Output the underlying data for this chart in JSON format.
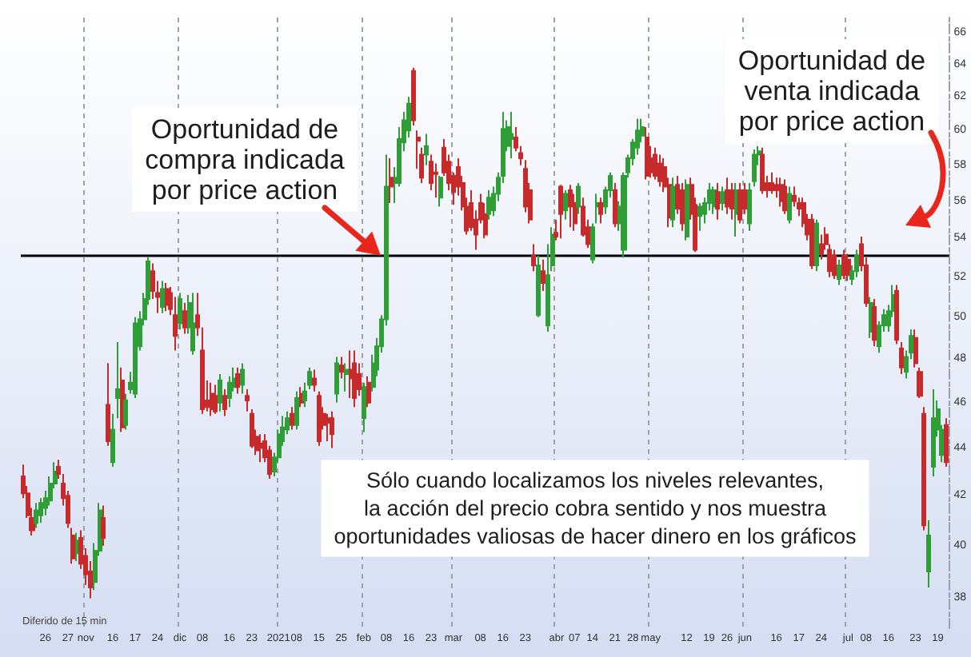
{
  "chart_data": {
    "type": "candlestick",
    "categories": [
      null,
      null,
      null,
      null,
      null,
      "26",
      null,
      null,
      null,
      null,
      "27",
      null,
      null,
      null,
      "nov",
      null,
      null,
      null,
      null,
      null,
      "16",
      null,
      null,
      null,
      null,
      "17",
      null,
      null,
      null,
      null,
      "24",
      null,
      null,
      null,
      null,
      "dic",
      null,
      null,
      null,
      null,
      "08",
      null,
      null,
      null,
      null,
      null,
      "16",
      null,
      null,
      null,
      null,
      "23",
      null,
      null,
      null,
      null,
      null,
      "2021",
      null,
      null,
      null,
      "08",
      null,
      null,
      null,
      null,
      "15",
      null,
      null,
      null,
      null,
      "25",
      null,
      null,
      null,
      null,
      "feb",
      null,
      null,
      null,
      null,
      "08",
      null,
      null,
      null,
      null,
      "16",
      null,
      null,
      null,
      null,
      "23",
      null,
      null,
      null,
      null,
      "mar",
      null,
      null,
      null,
      null,
      null,
      "08",
      null,
      null,
      null,
      null,
      "16",
      null,
      null,
      null,
      null,
      "23",
      null,
      null,
      null,
      null,
      null,
      null,
      "abr",
      null,
      null,
      null,
      "07",
      null,
      null,
      null,
      "14",
      null,
      null,
      null,
      null,
      "21",
      null,
      null,
      null,
      "28",
      null,
      null,
      null,
      "may",
      null,
      null,
      null,
      null,
      null,
      null,
      null,
      "12",
      null,
      null,
      null,
      null,
      "19",
      null,
      null,
      null,
      "26",
      null,
      null,
      null,
      "jun",
      null,
      null,
      null,
      null,
      null,
      null,
      "16",
      null,
      null,
      null,
      null,
      "17",
      null,
      null,
      null,
      null,
      "24",
      null,
      null,
      null,
      null,
      null,
      "jul",
      null,
      null,
      null,
      "08",
      null,
      null,
      null,
      null,
      "16",
      null,
      null,
      null,
      null,
      null,
      "23",
      null,
      null,
      null,
      null,
      "19",
      null,
      null
    ],
    "ohlc": [
      [
        42.8,
        43.3,
        41.9,
        42.1
      ],
      [
        42.1,
        42.4,
        41.1,
        41.2
      ],
      [
        41.1,
        41.5,
        40.4,
        40.6
      ],
      [
        40.9,
        41.7,
        40.7,
        41.4
      ],
      [
        41.2,
        41.9,
        40.9,
        41.7
      ],
      [
        41.5,
        42.2,
        41.2,
        41.9
      ],
      [
        41.8,
        42.8,
        41.6,
        42.5
      ],
      [
        42.5,
        43.4,
        42.3,
        43.0
      ],
      [
        43.2,
        43.5,
        42.7,
        42.9
      ],
      [
        42.5,
        42.9,
        41.6,
        41.9
      ],
      [
        42.0,
        42.2,
        40.7,
        40.9
      ],
      [
        40.4,
        40.7,
        39.3,
        39.5
      ],
      [
        39.7,
        40.5,
        39.4,
        40.2
      ],
      [
        40.3,
        40.6,
        39.1,
        39.3
      ],
      [
        39.6,
        39.9,
        38.5,
        38.9
      ],
      [
        39.0,
        39.4,
        38.0,
        38.4
      ],
      [
        38.6,
        40.1,
        38.3,
        39.8
      ],
      [
        39.8,
        41.7,
        39.6,
        41.4
      ],
      [
        41.1,
        41.6,
        40.0,
        40.3
      ],
      [
        45.9,
        47.8,
        44.1,
        44.3
      ],
      [
        43.4,
        45.5,
        43.2,
        44.8
      ],
      [
        46.2,
        48.8,
        45.3,
        46.6
      ],
      [
        47.0,
        47.6,
        44.7,
        44.9
      ],
      [
        45.0,
        46.4,
        44.8,
        46.1
      ],
      [
        46.6,
        47.4,
        46.4,
        46.9
      ],
      [
        46.4,
        50.0,
        46.2,
        49.7
      ],
      [
        48.6,
        50.3,
        48.4,
        49.9
      ],
      [
        49.9,
        51.2,
        49.6,
        50.9
      ],
      [
        50.9,
        53.0,
        50.6,
        52.8
      ],
      [
        52.3,
        52.7,
        50.9,
        51.3
      ],
      [
        51.2,
        51.8,
        50.2,
        51.0
      ],
      [
        50.5,
        51.8,
        50.2,
        51.4
      ],
      [
        51.4,
        51.7,
        50.3,
        50.6
      ],
      [
        51.2,
        51.5,
        50.1,
        50.4
      ],
      [
        50.1,
        51.0,
        48.4,
        49.1
      ],
      [
        49.7,
        51.2,
        49.4,
        50.9
      ],
      [
        50.3,
        50.7,
        49.2,
        49.5
      ],
      [
        49.5,
        51.1,
        49.2,
        50.7
      ],
      [
        48.4,
        51.2,
        48.2,
        49.7
      ],
      [
        50.1,
        51.2,
        49.1,
        49.5
      ],
      [
        48.4,
        49.5,
        45.5,
        45.7
      ],
      [
        46.1,
        47.0,
        45.6,
        45.8
      ],
      [
        46.4,
        46.9,
        45.4,
        45.7
      ],
      [
        46.3,
        46.8,
        45.5,
        45.6
      ],
      [
        46.0,
        47.3,
        45.6,
        47.0
      ],
      [
        46.3,
        46.6,
        45.4,
        45.7
      ],
      [
        46.2,
        47.2,
        45.8,
        46.9
      ],
      [
        46.7,
        47.6,
        46.5,
        47.1
      ],
      [
        47.3,
        47.6,
        46.4,
        46.7
      ],
      [
        46.8,
        47.8,
        46.4,
        47.5
      ],
      [
        46.3,
        46.6,
        45.6,
        46.1
      ],
      [
        45.5,
        45.7,
        44.0,
        44.1
      ],
      [
        44.5,
        44.8,
        43.7,
        43.9
      ],
      [
        44.2,
        44.6,
        43.4,
        44.0
      ],
      [
        44.3,
        44.6,
        43.4,
        43.6
      ],
      [
        43.9,
        44.1,
        42.7,
        42.9
      ],
      [
        43.0,
        43.8,
        42.8,
        43.6
      ],
      [
        43.6,
        44.8,
        43.4,
        44.6
      ],
      [
        44.3,
        45.4,
        44.1,
        44.9
      ],
      [
        44.8,
        45.6,
        44.6,
        45.3
      ],
      [
        45.5,
        45.8,
        44.8,
        45.0
      ],
      [
        45.0,
        46.5,
        44.8,
        46.2
      ],
      [
        46.4,
        46.7,
        45.8,
        46.0
      ],
      [
        46.1,
        46.9,
        45.8,
        46.5
      ],
      [
        46.8,
        47.6,
        46.6,
        47.4
      ],
      [
        47.1,
        47.5,
        46.5,
        46.8
      ],
      [
        46.3,
        46.5,
        44.1,
        44.3
      ],
      [
        45.5,
        45.8,
        44.8,
        45.0
      ],
      [
        45.3,
        45.5,
        44.3,
        45.1
      ],
      [
        45.3,
        45.6,
        44.0,
        44.6
      ],
      [
        46.4,
        48.1,
        46.0,
        47.8
      ],
      [
        47.7,
        48.1,
        47.1,
        47.4
      ],
      [
        47.3,
        47.8,
        46.5,
        47.5
      ],
      [
        47.5,
        48.4,
        46.2,
        47.1
      ],
      [
        47.8,
        48.4,
        45.8,
        46.2
      ],
      [
        47.3,
        47.8,
        46.3,
        46.6
      ],
      [
        45.3,
        46.9,
        44.7,
        46.7
      ],
      [
        46.9,
        47.2,
        45.8,
        46.0
      ],
      [
        46.7,
        48.2,
        46.5,
        47.8
      ],
      [
        47.5,
        49.0,
        47.2,
        48.6
      ],
      [
        48.6,
        50.1,
        48.3,
        49.9
      ],
      [
        49.9,
        58.6,
        49.6,
        56.8
      ],
      [
        57.3,
        58.4,
        55.9,
        56.8
      ],
      [
        57.0,
        57.9,
        55.9,
        57.3
      ],
      [
        57.0,
        60.2,
        56.8,
        59.5
      ],
      [
        59.3,
        61.1,
        58.8,
        60.6
      ],
      [
        60.0,
        62.0,
        59.6,
        61.6
      ],
      [
        63.6,
        63.8,
        60.3,
        60.6
      ],
      [
        59.6,
        60.0,
        57.8,
        59.4
      ],
      [
        58.6,
        59.0,
        57.0,
        57.3
      ],
      [
        58.6,
        59.8,
        58.0,
        59.1
      ],
      [
        58.2,
        58.6,
        56.6,
        57.0
      ],
      [
        57.6,
        58.1,
        56.2,
        57.5
      ],
      [
        56.2,
        57.4,
        55.7,
        57.3
      ],
      [
        59.0,
        59.5,
        57.4,
        57.6
      ],
      [
        58.2,
        58.6,
        56.6,
        57.0
      ],
      [
        57.4,
        57.6,
        55.8,
        56.5
      ],
      [
        57.9,
        58.4,
        56.3,
        56.8
      ],
      [
        57.0,
        57.4,
        55.5,
        55.7
      ],
      [
        55.7,
        56.2,
        54.2,
        54.4
      ],
      [
        55.9,
        56.6,
        54.4,
        54.6
      ],
      [
        55.0,
        55.5,
        53.4,
        54.2
      ],
      [
        55.9,
        56.4,
        54.8,
        55.0
      ],
      [
        55.3,
        55.9,
        54.0,
        54.2
      ],
      [
        55.3,
        56.6,
        55.0,
        56.2
      ],
      [
        55.5,
        56.8,
        55.2,
        56.4
      ],
      [
        56.4,
        57.6,
        56.0,
        57.3
      ],
      [
        57.4,
        61.1,
        57.0,
        60.1
      ],
      [
        59.1,
        60.6,
        58.8,
        60.2
      ],
      [
        59.5,
        61.1,
        58.4,
        59.8
      ],
      [
        59.6,
        60.2,
        58.8,
        59.0
      ],
      [
        58.7,
        59.1,
        58.0,
        58.4
      ],
      [
        57.8,
        58.3,
        55.4,
        55.7
      ],
      [
        56.6,
        57.0,
        54.8,
        55.0
      ],
      [
        53.1,
        53.7,
        52.3,
        52.6
      ],
      [
        50.1,
        53.1,
        50.0,
        52.6
      ],
      [
        52.3,
        52.9,
        51.3,
        51.7
      ],
      [
        49.6,
        53.7,
        49.3,
        52.1
      ],
      [
        52.6,
        54.6,
        52.3,
        54.2
      ],
      [
        54.3,
        55.0,
        53.9,
        54.1
      ],
      [
        56.8,
        56.9,
        54.0,
        55.3
      ],
      [
        55.5,
        56.6,
        55.0,
        56.4
      ],
      [
        56.6,
        56.9,
        54.6,
        55.7
      ],
      [
        55.9,
        56.4,
        54.4,
        54.8
      ],
      [
        55.7,
        57.0,
        55.3,
        56.8
      ],
      [
        55.7,
        56.2,
        54.1,
        54.2
      ],
      [
        54.6,
        55.0,
        53.5,
        53.7
      ],
      [
        52.9,
        54.8,
        52.7,
        54.6
      ],
      [
        55.7,
        56.4,
        54.8,
        55.9
      ],
      [
        55.9,
        56.2,
        54.8,
        55.3
      ],
      [
        55.7,
        56.8,
        55.3,
        56.6
      ],
      [
        56.6,
        57.6,
        56.2,
        57.4
      ],
      [
        56.6,
        57.0,
        54.6,
        54.8
      ],
      [
        54.8,
        56.0,
        54.4,
        55.7
      ],
      [
        53.4,
        57.6,
        53.0,
        57.4
      ],
      [
        57.6,
        58.6,
        57.3,
        58.4
      ],
      [
        58.4,
        59.5,
        58.0,
        59.3
      ],
      [
        59.0,
        60.7,
        58.6,
        60.0
      ],
      [
        59.7,
        60.7,
        59.3,
        60.2
      ],
      [
        59.6,
        60.2,
        57.2,
        57.4
      ],
      [
        58.4,
        59.1,
        57.3,
        57.6
      ],
      [
        58.6,
        59.0,
        57.2,
        57.4
      ],
      [
        58.1,
        58.6,
        56.8,
        57.1
      ],
      [
        57.9,
        58.4,
        56.5,
        56.8
      ],
      [
        56.9,
        57.3,
        54.6,
        55.1
      ],
      [
        55.0,
        57.3,
        54.6,
        56.8
      ],
      [
        56.9,
        57.4,
        55.3,
        55.6
      ],
      [
        56.6,
        57.0,
        54.4,
        54.8
      ],
      [
        54.1,
        57.2,
        53.9,
        56.9
      ],
      [
        56.9,
        57.3,
        55.0,
        55.3
      ],
      [
        55.8,
        56.2,
        53.3,
        53.4
      ],
      [
        55.2,
        55.9,
        54.4,
        55.7
      ],
      [
        55.3,
        56.2,
        54.8,
        55.9
      ],
      [
        55.9,
        57.0,
        55.5,
        56.6
      ],
      [
        55.7,
        56.8,
        55.3,
        56.6
      ],
      [
        56.5,
        57.0,
        55.0,
        55.6
      ],
      [
        55.9,
        56.8,
        55.5,
        56.5
      ],
      [
        56.6,
        57.3,
        55.3,
        55.7
      ],
      [
        56.6,
        57.0,
        55.0,
        55.6
      ],
      [
        55.3,
        57.0,
        54.1,
        56.6
      ],
      [
        56.6,
        57.0,
        54.8,
        55.0
      ],
      [
        56.6,
        57.0,
        55.3,
        55.6
      ],
      [
        54.8,
        57.0,
        54.4,
        56.6
      ],
      [
        57.1,
        58.9,
        56.8,
        58.6
      ],
      [
        58.6,
        59.1,
        58.0,
        58.8
      ],
      [
        58.6,
        59.0,
        56.4,
        56.6
      ],
      [
        57.0,
        57.4,
        56.2,
        56.6
      ],
      [
        57.0,
        57.6,
        56.4,
        56.6
      ],
      [
        56.9,
        57.3,
        56.2,
        56.6
      ],
      [
        56.9,
        57.3,
        55.7,
        56.0
      ],
      [
        56.8,
        57.2,
        55.3,
        55.5
      ],
      [
        55.0,
        56.8,
        54.8,
        56.4
      ],
      [
        56.3,
        56.8,
        55.7,
        56.0
      ],
      [
        55.9,
        56.2,
        55.2,
        55.6
      ],
      [
        55.9,
        56.2,
        54.6,
        54.8
      ],
      [
        55.0,
        55.3,
        53.9,
        54.2
      ],
      [
        55.0,
        55.3,
        52.4,
        52.6
      ],
      [
        52.6,
        55.0,
        52.3,
        54.8
      ],
      [
        53.7,
        54.2,
        52.9,
        53.2
      ],
      [
        54.2,
        54.6,
        53.4,
        53.7
      ],
      [
        53.4,
        53.7,
        52.0,
        52.3
      ],
      [
        53.1,
        53.4,
        51.9,
        52.1
      ],
      [
        51.9,
        52.9,
        51.6,
        52.6
      ],
      [
        53.1,
        53.4,
        51.9,
        52.1
      ],
      [
        52.9,
        53.2,
        51.8,
        52.1
      ],
      [
        51.9,
        52.6,
        51.6,
        52.3
      ],
      [
        52.3,
        53.4,
        52.0,
        53.1
      ],
      [
        53.7,
        54.1,
        52.3,
        52.6
      ],
      [
        52.6,
        53.0,
        50.5,
        50.7
      ],
      [
        49.3,
        51.0,
        49.0,
        50.7
      ],
      [
        50.5,
        50.9,
        48.6,
        48.9
      ],
      [
        48.6,
        49.8,
        48.3,
        49.6
      ],
      [
        49.6,
        50.4,
        49.3,
        50.1
      ],
      [
        49.6,
        50.6,
        49.3,
        50.3
      ],
      [
        50.3,
        51.6,
        50.0,
        51.1
      ],
      [
        51.3,
        51.6,
        48.7,
        48.9
      ],
      [
        48.5,
        48.8,
        47.3,
        47.6
      ],
      [
        47.4,
        48.4,
        47.1,
        48.1
      ],
      [
        48.3,
        49.4,
        48.0,
        49.1
      ],
      [
        49.0,
        49.4,
        47.6,
        47.8
      ],
      [
        47.4,
        47.6,
        46.2,
        46.3
      ],
      [
        45.5,
        45.8,
        40.6,
        40.8
      ],
      [
        39.0,
        41.0,
        38.4,
        40.4
      ],
      [
        43.2,
        46.6,
        42.8,
        45.3
      ],
      [
        44.8,
        46.1,
        44.5,
        45.7
      ],
      [
        43.7,
        45.0,
        43.4,
        44.8
      ],
      [
        45.0,
        45.3,
        43.2,
        43.4
      ]
    ],
    "colors": [
      "#c62a2a",
      "#c62a2a",
      "#c62a2a",
      "#2f9e36",
      "#2f9e36",
      "#2f9e36",
      "#2f9e36",
      "#2f9e36",
      "#c62a2a",
      "#c62a2a",
      "#c62a2a",
      "#c62a2a",
      "#2f9e36",
      "#c62a2a",
      "#c62a2a",
      "#c62a2a",
      "#2f9e36",
      "#2f9e36",
      "#c62a2a",
      "#c62a2a",
      "#2f9e36",
      "#2f9e36",
      "#c62a2a",
      "#2f9e36",
      "#2f9e36",
      "#2f9e36",
      "#2f9e36",
      "#2f9e36",
      "#2f9e36",
      "#c62a2a",
      "#c62a2a",
      "#2f9e36",
      "#c62a2a",
      "#c62a2a",
      "#c62a2a",
      "#2f9e36",
      "#c62a2a",
      "#2f9e36",
      "#2f9e36",
      "#c62a2a",
      "#c62a2a",
      "#c62a2a",
      "#c62a2a",
      "#c62a2a",
      "#2f9e36",
      "#c62a2a",
      "#2f9e36",
      "#2f9e36",
      "#c62a2a",
      "#2f9e36",
      "#c62a2a",
      "#c62a2a",
      "#c62a2a",
      "#c62a2a",
      "#c62a2a",
      "#c62a2a",
      "#2f9e36",
      "#2f9e36",
      "#2f9e36",
      "#2f9e36",
      "#c62a2a",
      "#2f9e36",
      "#c62a2a",
      "#2f9e36",
      "#2f9e36",
      "#c62a2a",
      "#c62a2a",
      "#c62a2a",
      "#c62a2a",
      "#c62a2a",
      "#2f9e36",
      "#c62a2a",
      "#2f9e36",
      "#c62a2a",
      "#c62a2a",
      "#c62a2a",
      "#2f9e36",
      "#c62a2a",
      "#2f9e36",
      "#2f9e36",
      "#2f9e36",
      "#2f9e36",
      "#c62a2a",
      "#2f9e36",
      "#2f9e36",
      "#2f9e36",
      "#2f9e36",
      "#c62a2a",
      "#c62a2a",
      "#c62a2a",
      "#2f9e36",
      "#c62a2a",
      "#c62a2a",
      "#2f9e36",
      "#c62a2a",
      "#c62a2a",
      "#c62a2a",
      "#c62a2a",
      "#c62a2a",
      "#c62a2a",
      "#c62a2a",
      "#c62a2a",
      "#c62a2a",
      "#c62a2a",
      "#2f9e36",
      "#2f9e36",
      "#2f9e36",
      "#2f9e36",
      "#2f9e36",
      "#2f9e36",
      "#c62a2a",
      "#c62a2a",
      "#c62a2a",
      "#c62a2a",
      "#c62a2a",
      "#2f9e36",
      "#c62a2a",
      "#2f9e36",
      "#2f9e36",
      "#c62a2a",
      "#c62a2a",
      "#2f9e36",
      "#c62a2a",
      "#c62a2a",
      "#2f9e36",
      "#c62a2a",
      "#c62a2a",
      "#2f9e36",
      "#2f9e36",
      "#c62a2a",
      "#2f9e36",
      "#2f9e36",
      "#c62a2a",
      "#2f9e36",
      "#2f9e36",
      "#2f9e36",
      "#2f9e36",
      "#2f9e36",
      "#2f9e36",
      "#c62a2a",
      "#c62a2a",
      "#c62a2a",
      "#c62a2a",
      "#c62a2a",
      "#c62a2a",
      "#2f9e36",
      "#c62a2a",
      "#c62a2a",
      "#2f9e36",
      "#c62a2a",
      "#c62a2a",
      "#2f9e36",
      "#2f9e36",
      "#2f9e36",
      "#2f9e36",
      "#c62a2a",
      "#2f9e36",
      "#c62a2a",
      "#c62a2a",
      "#2f9e36",
      "#c62a2a",
      "#c62a2a",
      "#2f9e36",
      "#2f9e36",
      "#2f9e36",
      "#c62a2a",
      "#c62a2a",
      "#c62a2a",
      "#c62a2a",
      "#c62a2a",
      "#c62a2a",
      "#2f9e36",
      "#c62a2a",
      "#c62a2a",
      "#c62a2a",
      "#c62a2a",
      "#c62a2a",
      "#2f9e36",
      "#c62a2a",
      "#c62a2a",
      "#c62a2a",
      "#c62a2a",
      "#2f9e36",
      "#c62a2a",
      "#c62a2a",
      "#2f9e36",
      "#2f9e36",
      "#c62a2a",
      "#c62a2a",
      "#2f9e36",
      "#c62a2a",
      "#2f9e36",
      "#2f9e36",
      "#2f9e36",
      "#2f9e36",
      "#c62a2a",
      "#c62a2a",
      "#2f9e36",
      "#2f9e36",
      "#c62a2a",
      "#c62a2a",
      "#c62a2a",
      "#2f9e36",
      "#2f9e36",
      "#2f9e36",
      "#2f9e36",
      "#c62a2a"
    ],
    "ylim": [
      36.9,
      67.0
    ],
    "yticks": [
      38,
      40,
      42,
      44,
      46,
      48,
      50,
      52,
      54,
      56,
      58,
      60,
      62,
      64,
      66
    ],
    "log": "y",
    "grid": "x",
    "ref_lines": [
      {
        "axis": "y",
        "value": 53.1,
        "color": "#000000",
        "line_style": "solid"
      }
    ],
    "annotations": [
      {
        "text": "Oportunidad de\ncompra indicada\npor price action",
        "y": 53.1
      },
      "Oportunidad de\nventa indicada\npor price action",
      "Sólo cuando localizamos los niveles relevantes,\nla acción del precio cobra sentido y nos muestra\noportunidades valiosas de hacer dinero en los gráficos",
      "Diferido de 15 min"
    ]
  }
}
